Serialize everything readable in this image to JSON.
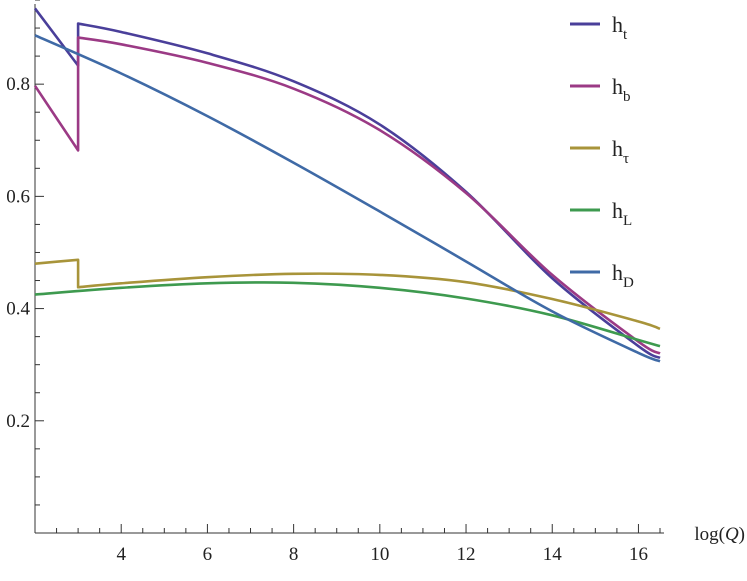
{
  "chart_data": {
    "type": "line",
    "xlabel": "log(Q)",
    "xlabel_parts": {
      "prefix": "log(",
      "var": "Q",
      "suffix": ")"
    },
    "ylabel": "",
    "xlim": [
      2,
      16.5
    ],
    "ylim": [
      0,
      0.95
    ],
    "xticks": [
      4,
      6,
      8,
      10,
      12,
      14,
      16
    ],
    "yticks": [
      0.2,
      0.4,
      0.6,
      0.8
    ],
    "xtick_labels": [
      "4",
      "6",
      "8",
      "10",
      "12",
      "14",
      "16"
    ],
    "ytick_labels": [
      "0.2",
      "0.4",
      "0.6",
      "0.8"
    ],
    "grid": false,
    "legend_position": "top-right",
    "series": [
      {
        "name": "h_t",
        "base": "h",
        "sub": "t",
        "color": "#4a3f9a",
        "points": [
          [
            2.0,
            0.935
          ],
          [
            3.0,
            0.833
          ],
          [
            3.0,
            0.908
          ],
          [
            4,
            0.893
          ],
          [
            6,
            0.855
          ],
          [
            8,
            0.805
          ],
          [
            10,
            0.728
          ],
          [
            12,
            0.608
          ],
          [
            14,
            0.454
          ],
          [
            16,
            0.333
          ],
          [
            16.5,
            0.312
          ]
        ]
      },
      {
        "name": "h_b",
        "base": "h",
        "sub": "b",
        "color": "#9b3a85",
        "points": [
          [
            2.0,
            0.797
          ],
          [
            3.0,
            0.682
          ],
          [
            3.0,
            0.883
          ],
          [
            4,
            0.871
          ],
          [
            6,
            0.838
          ],
          [
            8,
            0.792
          ],
          [
            10,
            0.718
          ],
          [
            12,
            0.606
          ],
          [
            14,
            0.46
          ],
          [
            16,
            0.341
          ],
          [
            16.5,
            0.32
          ]
        ]
      },
      {
        "name": "h_τ",
        "base": "h",
        "sub": "τ",
        "color": "#a8943a",
        "points": [
          [
            2.0,
            0.48
          ],
          [
            3.0,
            0.487
          ],
          [
            3.0,
            0.438
          ],
          [
            4,
            0.445
          ],
          [
            6,
            0.456
          ],
          [
            8,
            0.462
          ],
          [
            10,
            0.46
          ],
          [
            12,
            0.447
          ],
          [
            14,
            0.417
          ],
          [
            16,
            0.377
          ],
          [
            16.5,
            0.364
          ]
        ]
      },
      {
        "name": "h_L",
        "base": "h",
        "sub": "L",
        "color": "#3e9a4f",
        "points": [
          [
            2.0,
            0.425
          ],
          [
            4,
            0.437
          ],
          [
            6,
            0.445
          ],
          [
            8,
            0.446
          ],
          [
            10,
            0.437
          ],
          [
            12,
            0.418
          ],
          [
            14,
            0.388
          ],
          [
            16,
            0.344
          ],
          [
            16.5,
            0.333
          ]
        ]
      },
      {
        "name": "h_D",
        "base": "h",
        "sub": "D",
        "color": "#3f6aa6",
        "points": [
          [
            2.0,
            0.887
          ],
          [
            4,
            0.819
          ],
          [
            6,
            0.743
          ],
          [
            8,
            0.66
          ],
          [
            10,
            0.573
          ],
          [
            12,
            0.484
          ],
          [
            14,
            0.395
          ],
          [
            16,
            0.321
          ],
          [
            16.5,
            0.306
          ]
        ]
      }
    ]
  }
}
